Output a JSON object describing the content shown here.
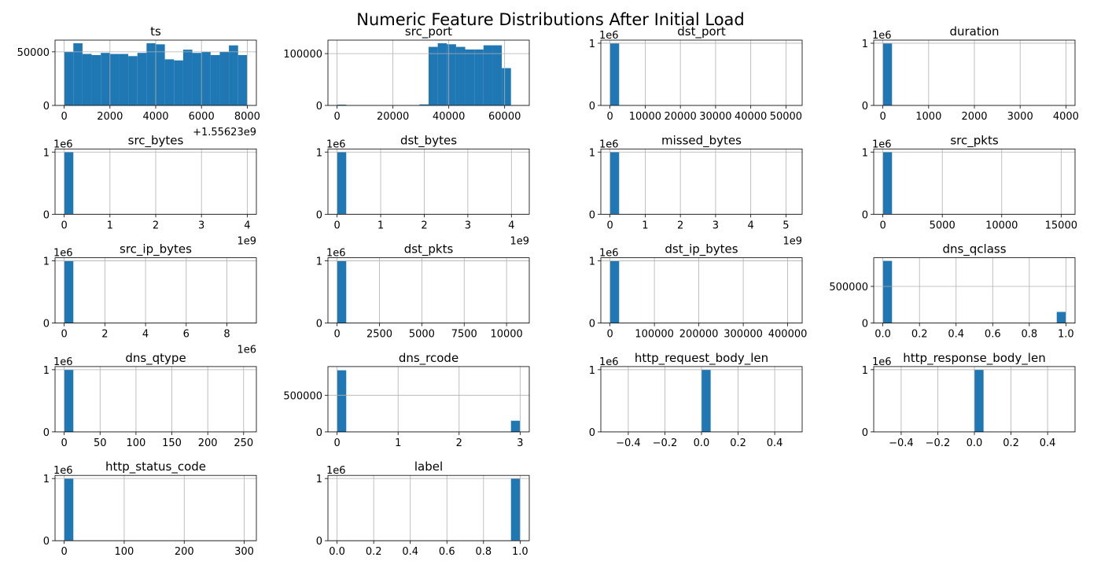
{
  "title": "Numeric Feature Distributions After Initial Load",
  "chart_data": [
    {
      "type": "histogram",
      "title": "ts",
      "color": "#1f77b4",
      "grid": true,
      "x_offset_label": "+1.55623e9",
      "bins": [
        0,
        400,
        800,
        1200,
        1600,
        2000,
        2400,
        2800,
        3200,
        3600,
        4000,
        4400,
        4800,
        5200,
        5600,
        6000,
        6400,
        6800,
        7200,
        7600,
        8000
      ],
      "values": [
        50000,
        58000,
        48000,
        47000,
        49000,
        48000,
        48000,
        46000,
        49000,
        58000,
        57000,
        43000,
        42000,
        52000,
        49000,
        50000,
        47000,
        50000,
        56000,
        47000
      ],
      "xlim": [
        -400,
        8400
      ],
      "xticks": [
        0,
        2000,
        4000,
        6000,
        8000
      ],
      "ylim": [
        0,
        60900
      ],
      "yticks": [
        0,
        50000
      ]
    },
    {
      "type": "histogram",
      "title": "src_port",
      "color": "#1f77b4",
      "grid": true,
      "bins": [
        0,
        3277,
        6554,
        9831,
        13108,
        16385,
        19662,
        22939,
        26216,
        29493,
        32770,
        36047,
        39324,
        42601,
        45878,
        49155,
        52432,
        55709,
        58986,
        62263,
        65540
      ],
      "values": [
        1500,
        0,
        0,
        0,
        0,
        0,
        0,
        0,
        0,
        2000,
        113000,
        120000,
        118000,
        113000,
        108000,
        108000,
        116000,
        116000,
        72000,
        0
      ],
      "xlim": [
        -3277,
        68817
      ],
      "xticks": [
        0,
        20000,
        40000,
        60000
      ],
      "ylim": [
        0,
        126000
      ],
      "yticks": [
        0,
        100000
      ]
    },
    {
      "type": "histogram",
      "title": "dst_port",
      "color": "#1f77b4",
      "grid": true,
      "y_offset_label": "1e6",
      "bins": [
        0,
        2600,
        5200,
        7800,
        10400,
        13000,
        15600,
        18200,
        20800,
        23400,
        26000,
        28600,
        31200,
        33800,
        36400,
        39000,
        41600,
        44200,
        46800,
        49400,
        52000
      ],
      "values": [
        1.0,
        0,
        0,
        0,
        0,
        0,
        0,
        0,
        0,
        0,
        0,
        0,
        0,
        0,
        0,
        0,
        0,
        0,
        0,
        0
      ],
      "xlim": [
        -2600,
        54600
      ],
      "xticks": [
        0,
        10000,
        20000,
        30000,
        40000,
        50000
      ],
      "ylim": [
        0,
        1.05
      ],
      "yticks": [
        0,
        1
      ]
    },
    {
      "type": "histogram",
      "title": "duration",
      "color": "#1f77b4",
      "grid": true,
      "y_offset_label": "1e6",
      "bins": [
        0,
        200,
        400,
        600,
        800,
        1000,
        1200,
        1400,
        1600,
        1800,
        2000,
        2200,
        2400,
        2600,
        2800,
        3000,
        3200,
        3400,
        3600,
        3800,
        4000
      ],
      "values": [
        1.0,
        0,
        0,
        0,
        0,
        0,
        0,
        0,
        0,
        0,
        0,
        0,
        0,
        0,
        0,
        0,
        0,
        0,
        0,
        0
      ],
      "xlim": [
        -200,
        4200
      ],
      "xticks": [
        0,
        1000,
        2000,
        3000,
        4000
      ],
      "ylim": [
        0,
        1.05
      ],
      "yticks": [
        0,
        1
      ]
    },
    {
      "type": "histogram",
      "title": "src_bytes",
      "color": "#1f77b4",
      "grid": true,
      "y_offset_label": "1e6",
      "x_offset_label": "1e9",
      "bins": [
        0,
        0.2,
        0.4,
        0.6,
        0.8,
        1,
        1.2,
        1.4,
        1.6,
        1.8,
        2,
        2.2,
        2.4,
        2.6,
        2.8,
        3,
        3.2,
        3.4,
        3.6,
        3.8,
        4
      ],
      "values": [
        1.0,
        0,
        0,
        0,
        0,
        0,
        0,
        0,
        0,
        0,
        0,
        0,
        0,
        0,
        0,
        0,
        0,
        0,
        0,
        0
      ],
      "xlim": [
        -0.2,
        4.2
      ],
      "xticks": [
        0,
        1,
        2,
        3,
        4
      ],
      "ylim": [
        0,
        1.05
      ],
      "yticks": [
        0,
        1
      ]
    },
    {
      "type": "histogram",
      "title": "dst_bytes",
      "color": "#1f77b4",
      "grid": true,
      "y_offset_label": "1e6",
      "x_offset_label": "1e9",
      "bins": [
        0,
        0.21,
        0.42,
        0.63,
        0.84,
        1.05,
        1.26,
        1.47,
        1.68,
        1.89,
        2.1,
        2.31,
        2.52,
        2.73,
        2.94,
        3.15,
        3.36,
        3.57,
        3.78,
        3.99,
        4.2
      ],
      "values": [
        1.0,
        0,
        0,
        0,
        0,
        0,
        0,
        0,
        0,
        0,
        0,
        0,
        0,
        0,
        0,
        0,
        0,
        0,
        0,
        0
      ],
      "xlim": [
        -0.21,
        4.41
      ],
      "xticks": [
        0,
        1,
        2,
        3,
        4
      ],
      "ylim": [
        0,
        1.05
      ],
      "yticks": [
        0,
        1
      ]
    },
    {
      "type": "histogram",
      "title": "missed_bytes",
      "color": "#1f77b4",
      "grid": true,
      "y_offset_label": "1e6",
      "x_offset_label": "1e9",
      "bins": [
        0,
        0.26,
        0.52,
        0.78,
        1.04,
        1.3,
        1.56,
        1.82,
        2.08,
        2.34,
        2.6,
        2.86,
        3.12,
        3.38,
        3.64,
        3.9,
        4.16,
        4.42,
        4.68,
        4.94,
        5.2
      ],
      "values": [
        1.0,
        0,
        0,
        0,
        0,
        0,
        0,
        0,
        0,
        0,
        0,
        0,
        0,
        0,
        0,
        0,
        0,
        0,
        0,
        0
      ],
      "xlim": [
        -0.26,
        5.46
      ],
      "xticks": [
        0,
        1,
        2,
        3,
        4,
        5
      ],
      "ylim": [
        0,
        1.05
      ],
      "yticks": [
        0,
        1
      ]
    },
    {
      "type": "histogram",
      "title": "src_pkts",
      "color": "#1f77b4",
      "grid": true,
      "y_offset_label": "1e6",
      "bins": [
        0,
        770,
        1540,
        2310,
        3080,
        3850,
        4620,
        5390,
        6160,
        6930,
        7700,
        8470,
        9240,
        10010,
        10780,
        11550,
        12320,
        13090,
        13860,
        14630,
        15400
      ],
      "values": [
        1.0,
        0,
        0,
        0,
        0,
        0,
        0,
        0,
        0,
        0,
        0,
        0,
        0,
        0,
        0,
        0,
        0,
        0,
        0,
        0
      ],
      "xlim": [
        -770,
        16170
      ],
      "xticks": [
        0,
        5000,
        10000,
        15000
      ],
      "ylim": [
        0,
        1.05
      ],
      "yticks": [
        0,
        1
      ]
    },
    {
      "type": "histogram",
      "title": "src_ip_bytes",
      "color": "#1f77b4",
      "grid": true,
      "y_offset_label": "1e6",
      "x_offset_label": "1e6",
      "bins": [
        0,
        0.45,
        0.9,
        1.35,
        1.8,
        2.25,
        2.7,
        3.15,
        3.6,
        4.05,
        4.5,
        4.95,
        5.4,
        5.85,
        6.3,
        6.75,
        7.2,
        7.65,
        8.1,
        8.55,
        9
      ],
      "values": [
        1.0,
        0,
        0,
        0,
        0,
        0,
        0,
        0,
        0,
        0,
        0,
        0,
        0,
        0,
        0,
        0,
        0,
        0,
        0,
        0
      ],
      "xlim": [
        -0.45,
        9.45
      ],
      "xticks": [
        0,
        2,
        4,
        6,
        8
      ],
      "ylim": [
        0,
        1.05
      ],
      "yticks": [
        0,
        1
      ]
    },
    {
      "type": "histogram",
      "title": "dst_pkts",
      "color": "#1f77b4",
      "grid": true,
      "y_offset_label": "1e6",
      "bins": [
        0,
        540,
        1080,
        1620,
        2160,
        2700,
        3240,
        3780,
        4320,
        4860,
        5400,
        5940,
        6480,
        7020,
        7560,
        8100,
        8640,
        9180,
        9720,
        10260,
        10800
      ],
      "values": [
        1.0,
        0,
        0,
        0,
        0,
        0,
        0,
        0,
        0,
        0,
        0,
        0,
        0,
        0,
        0,
        0,
        0,
        0,
        0,
        0
      ],
      "xlim": [
        -540,
        11340
      ],
      "xticks": [
        0,
        2500,
        5000,
        7500,
        10000
      ],
      "ylim": [
        0,
        1.05
      ],
      "yticks": [
        0,
        1
      ]
    },
    {
      "type": "histogram",
      "title": "dst_ip_bytes",
      "color": "#1f77b4",
      "grid": true,
      "y_offset_label": "1e6",
      "bins": [
        0,
        20600,
        41200,
        61800,
        82400,
        103000,
        123600,
        144200,
        164800,
        185400,
        206000,
        226600,
        247200,
        267800,
        288400,
        309000,
        329600,
        350200,
        370800,
        391400,
        412000
      ],
      "values": [
        1.0,
        0,
        0,
        0,
        0,
        0,
        0,
        0,
        0,
        0,
        0,
        0,
        0,
        0,
        0,
        0,
        0,
        0,
        0,
        0
      ],
      "xlim": [
        -20600,
        432600
      ],
      "xticks": [
        0,
        100000,
        200000,
        300000,
        400000
      ],
      "ylim": [
        0,
        1.05
      ],
      "yticks": [
        0,
        1
      ]
    },
    {
      "type": "histogram",
      "title": "dns_qclass",
      "color": "#1f77b4",
      "grid": true,
      "bins": [
        0,
        0.05,
        0.1,
        0.15,
        0.2,
        0.25,
        0.3,
        0.35,
        0.4,
        0.45,
        0.5,
        0.55,
        0.6,
        0.65,
        0.7,
        0.75,
        0.8,
        0.85,
        0.9,
        0.95,
        1
      ],
      "values": [
        848000,
        0,
        0,
        0,
        0,
        0,
        0,
        0,
        0,
        0,
        0,
        0,
        0,
        0,
        0,
        0,
        0,
        0,
        0,
        152000
      ],
      "xlim": [
        -0.05,
        1.05
      ],
      "xticks": [
        {
          "value": 0,
          "label": "0.0"
        },
        0.2,
        0.4,
        0.6,
        0.8,
        {
          "value": 1,
          "label": "1.0"
        }
      ],
      "ylim": [
        0,
        890400
      ],
      "yticks": [
        0,
        500000
      ]
    },
    {
      "type": "histogram",
      "title": "dns_qtype",
      "color": "#1f77b4",
      "grid": true,
      "y_offset_label": "1e6",
      "bins": [
        0,
        12.75,
        25.5,
        38.25,
        51,
        63.75,
        76.5,
        89.25,
        102,
        114.75,
        127.5,
        140.25,
        153,
        165.75,
        178.5,
        191.25,
        204,
        216.75,
        229.5,
        242.25,
        255
      ],
      "values": [
        1.0,
        0,
        0,
        0,
        0,
        0,
        0,
        0,
        0,
        0,
        0,
        0,
        0,
        0,
        0,
        0,
        0,
        0,
        0,
        0
      ],
      "xlim": [
        -12.75,
        267.75
      ],
      "xticks": [
        0,
        50,
        100,
        150,
        200,
        250
      ],
      "ylim": [
        0,
        1.05
      ],
      "yticks": [
        0,
        1
      ]
    },
    {
      "type": "histogram",
      "title": "dns_rcode",
      "color": "#1f77b4",
      "grid": true,
      "bins": [
        0,
        0.15,
        0.3,
        0.45,
        0.6,
        0.75,
        0.9,
        1.05,
        1.2,
        1.35,
        1.5,
        1.65,
        1.8,
        1.95,
        2.1,
        2.25,
        2.4,
        2.55,
        2.7,
        2.85,
        3
      ],
      "values": [
        840000,
        0,
        0,
        0,
        0,
        0,
        0,
        0,
        0,
        0,
        0,
        0,
        0,
        0,
        0,
        0,
        0,
        0,
        0,
        152000
      ],
      "xlim": [
        -0.15,
        3.15
      ],
      "xticks": [
        0,
        1,
        2,
        3
      ],
      "ylim": [
        0,
        890400
      ],
      "yticks": [
        0,
        500000
      ]
    },
    {
      "type": "histogram",
      "title": "http_request_body_len",
      "color": "#1f77b4",
      "grid": true,
      "y_offset_label": "1e6",
      "bins": [
        -0.5,
        -0.45,
        -0.4,
        -0.35,
        -0.3,
        -0.25,
        -0.2,
        -0.15,
        -0.1,
        -0.05,
        0,
        0.05,
        0.1,
        0.15,
        0.2,
        0.25,
        0.3,
        0.35,
        0.4,
        0.45,
        0.5
      ],
      "values": [
        0,
        0,
        0,
        0,
        0,
        0,
        0,
        0,
        0,
        0,
        1.0,
        0,
        0,
        0,
        0,
        0,
        0,
        0,
        0,
        0
      ],
      "xlim": [
        -0.55,
        0.55
      ],
      "xticks": [
        {
          "value": -0.4,
          "label": "−0.4"
        },
        {
          "value": -0.2,
          "label": "−0.2"
        },
        {
          "value": 0,
          "label": "0.0"
        },
        0.2,
        0.4
      ],
      "ylim": [
        0,
        1.05
      ],
      "yticks": [
        0,
        1
      ]
    },
    {
      "type": "histogram",
      "title": "http_response_body_len",
      "color": "#1f77b4",
      "grid": true,
      "y_offset_label": "1e6",
      "bins": [
        -0.5,
        -0.45,
        -0.4,
        -0.35,
        -0.3,
        -0.25,
        -0.2,
        -0.15,
        -0.1,
        -0.05,
        0,
        0.05,
        0.1,
        0.15,
        0.2,
        0.25,
        0.3,
        0.35,
        0.4,
        0.45,
        0.5
      ],
      "values": [
        0,
        0,
        0,
        0,
        0,
        0,
        0,
        0,
        0,
        0,
        1.0,
        0,
        0,
        0,
        0,
        0,
        0,
        0,
        0,
        0
      ],
      "xlim": [
        -0.55,
        0.55
      ],
      "xticks": [
        {
          "value": -0.4,
          "label": "−0.4"
        },
        {
          "value": -0.2,
          "label": "−0.2"
        },
        {
          "value": 0,
          "label": "0.0"
        },
        0.2,
        0.4
      ],
      "ylim": [
        0,
        1.05
      ],
      "yticks": [
        0,
        1
      ]
    },
    {
      "type": "histogram",
      "title": "http_status_code",
      "color": "#1f77b4",
      "grid": true,
      "y_offset_label": "1e6",
      "bins": [
        0,
        15.25,
        30.5,
        45.75,
        61,
        76.25,
        91.5,
        106.75,
        122,
        137.25,
        152.5,
        167.75,
        183,
        198.25,
        213.5,
        228.75,
        244,
        259.25,
        274.5,
        289.75,
        305
      ],
      "values": [
        1.0,
        0,
        0,
        0,
        0,
        0,
        0,
        0,
        0,
        0,
        0,
        0,
        0,
        0,
        0,
        0,
        0,
        0,
        0,
        0
      ],
      "xlim": [
        -15.25,
        320.25
      ],
      "xticks": [
        0,
        100,
        200,
        300
      ],
      "ylim": [
        0,
        1.05
      ],
      "yticks": [
        0,
        1
      ]
    },
    {
      "type": "histogram",
      "title": "label",
      "color": "#1f77b4",
      "grid": true,
      "y_offset_label": "1e6",
      "bins": [
        0,
        0.05,
        0.1,
        0.15,
        0.2,
        0.25,
        0.3,
        0.35,
        0.4,
        0.45,
        0.5,
        0.55,
        0.6,
        0.65,
        0.7,
        0.75,
        0.8,
        0.85,
        0.9,
        0.95,
        1
      ],
      "values": [
        0,
        0,
        0,
        0,
        0,
        0,
        0,
        0,
        0,
        0,
        0,
        0,
        0,
        0,
        0,
        0,
        0,
        0,
        0,
        1.0
      ],
      "xlim": [
        -0.05,
        1.05
      ],
      "xticks": [
        {
          "value": 0,
          "label": "0.0"
        },
        0.2,
        0.4,
        0.6,
        0.8,
        {
          "value": 1,
          "label": "1.0"
        }
      ],
      "ylim": [
        0,
        1.05
      ],
      "yticks": [
        0,
        1
      ]
    }
  ]
}
